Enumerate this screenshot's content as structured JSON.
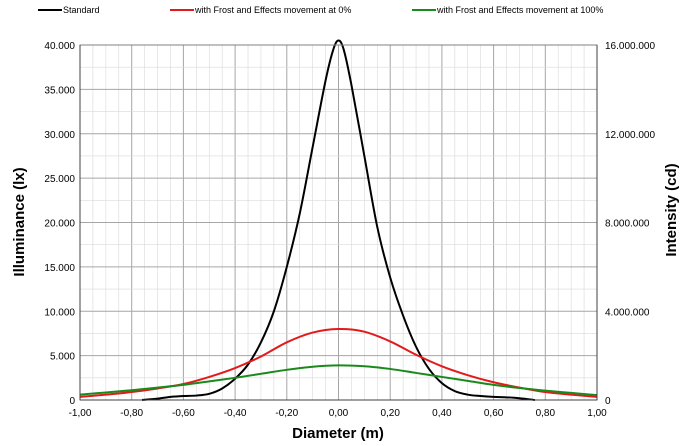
{
  "chart_data": {
    "type": "line",
    "title": "",
    "xlabel": "Diameter (m)",
    "ylabel": "Illuminance  (lx)",
    "y2label": "Intensity  (cd)",
    "xlim": [
      -1.0,
      1.0
    ],
    "ylim": [
      0,
      40000
    ],
    "y2lim": [
      0,
      16000000
    ],
    "grid": true,
    "legend_position": "top",
    "x_ticks": [
      "-1,00",
      "-0,80",
      "-0,60",
      "-0,40",
      "-0,20",
      "0,00",
      "0,20",
      "0,40",
      "0,60",
      "0,80",
      "1,00"
    ],
    "y_ticks": [
      "0",
      "5.000",
      "10.000",
      "15.000",
      "20.000",
      "25.000",
      "30.000",
      "35.000",
      "40.000"
    ],
    "y2_ticks": [
      "0",
      "4.000.000",
      "8.000.000",
      "12.000.000",
      "16.000.000"
    ],
    "series": [
      {
        "name": "Standard",
        "color": "#000000",
        "x": [
          -0.76,
          -0.7,
          -0.65,
          -0.6,
          -0.55,
          -0.5,
          -0.45,
          -0.4,
          -0.35,
          -0.3,
          -0.25,
          -0.2,
          -0.15,
          -0.1,
          -0.05,
          -0.02,
          0.0,
          0.02,
          0.05,
          0.1,
          0.15,
          0.2,
          0.25,
          0.3,
          0.35,
          0.4,
          0.45,
          0.5,
          0.55,
          0.6,
          0.65,
          0.7,
          0.76
        ],
        "y": [
          0,
          150,
          350,
          450,
          500,
          700,
          1300,
          2400,
          4000,
          6500,
          10000,
          15000,
          21000,
          28500,
          36000,
          39500,
          40500,
          39500,
          35500,
          27500,
          19500,
          13800,
          9500,
          6000,
          3500,
          1900,
          1000,
          600,
          450,
          350,
          300,
          200,
          0
        ]
      },
      {
        "name": "with Frost and Effects movement at 0%",
        "color": "#e31a1c",
        "x": [
          -1.0,
          -0.9,
          -0.8,
          -0.7,
          -0.6,
          -0.5,
          -0.4,
          -0.3,
          -0.2,
          -0.1,
          0.0,
          0.1,
          0.2,
          0.3,
          0.4,
          0.5,
          0.6,
          0.7,
          0.8,
          0.9,
          1.0
        ],
        "y": [
          350,
          600,
          900,
          1300,
          1800,
          2600,
          3600,
          4900,
          6500,
          7600,
          8000,
          7700,
          6600,
          5100,
          3800,
          2800,
          2000,
          1400,
          900,
          600,
          350
        ]
      },
      {
        "name": "with Frost and Effects movement at 100%",
        "color": "#1a8a1a",
        "x": [
          -1.0,
          -0.9,
          -0.8,
          -0.7,
          -0.6,
          -0.5,
          -0.4,
          -0.3,
          -0.2,
          -0.1,
          0.0,
          0.1,
          0.2,
          0.3,
          0.4,
          0.5,
          0.6,
          0.7,
          0.8,
          0.9,
          1.0
        ],
        "y": [
          600,
          850,
          1100,
          1400,
          1700,
          2100,
          2500,
          2950,
          3400,
          3750,
          3900,
          3800,
          3500,
          3050,
          2600,
          2150,
          1700,
          1350,
          1050,
          800,
          550
        ]
      }
    ]
  }
}
